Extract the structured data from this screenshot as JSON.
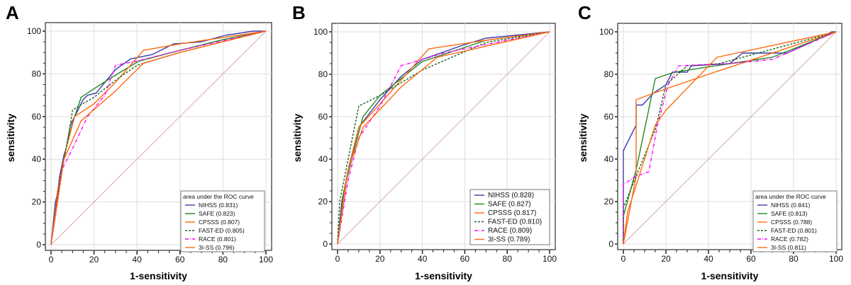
{
  "chart_data": [
    {
      "panel_label": "A",
      "type": "line",
      "xlabel": "1-sensitivity",
      "ylabel": "sensitivity",
      "xlim": [
        0,
        100
      ],
      "ylim": [
        0,
        100
      ],
      "ticks": [
        "0",
        "20",
        "40",
        "60",
        "80",
        "100"
      ],
      "grid": true,
      "legend_position": "bottom-right",
      "legend_title": "area under the ROC curve",
      "series": [
        {
          "name": "NIHSS (0.831)",
          "color": "#3b3bab",
          "style": "solid",
          "points": [
            [
              0,
              0
            ],
            [
              1,
              10
            ],
            [
              2,
              20
            ],
            [
              3,
              24
            ],
            [
              4,
              32
            ],
            [
              6,
              42
            ],
            [
              7,
              45
            ],
            [
              9,
              56
            ],
            [
              10,
              58
            ],
            [
              12,
              62
            ],
            [
              15,
              68
            ],
            [
              17,
              70
            ],
            [
              21,
              71
            ],
            [
              25,
              76
            ],
            [
              30,
              82
            ],
            [
              37,
              87
            ],
            [
              47,
              89
            ],
            [
              57,
              94
            ],
            [
              70,
              95
            ],
            [
              81,
              98
            ],
            [
              94,
              100
            ],
            [
              100,
              100
            ]
          ]
        },
        {
          "name": "SAFE (0.823)",
          "color": "#1f8a1f",
          "style": "solid",
          "points": [
            [
              0,
              0
            ],
            [
              2,
              15
            ],
            [
              4,
              30
            ],
            [
              7,
              45
            ],
            [
              10,
              57
            ],
            [
              14,
              69
            ],
            [
              23,
              75
            ],
            [
              31,
              80
            ],
            [
              41,
              86
            ],
            [
              60,
              91
            ],
            [
              80,
              96
            ],
            [
              100,
              100
            ]
          ]
        },
        {
          "name": "CPSSS (0.807)",
          "color": "#ff6a10",
          "style": "solid",
          "points": [
            [
              0,
              0
            ],
            [
              3,
              25
            ],
            [
              7,
              45
            ],
            [
              11,
              60
            ],
            [
              20,
              66
            ],
            [
              30,
              76
            ],
            [
              43,
              91
            ],
            [
              60,
              94
            ],
            [
              100,
              100
            ]
          ]
        },
        {
          "name": "FAST-ED (0.805)",
          "color": "#1a661a",
          "style": "dash",
          "points": [
            [
              0,
              0
            ],
            [
              4,
              30
            ],
            [
              8,
              50
            ],
            [
              10,
              63
            ],
            [
              13,
              65
            ],
            [
              20,
              69
            ],
            [
              30,
              77
            ],
            [
              40,
              84
            ],
            [
              60,
              90
            ],
            [
              100,
              100
            ]
          ]
        },
        {
          "name": "RACE (0.801)",
          "color": "#ff00ff",
          "style": "dashdot",
          "points": [
            [
              0,
              0
            ],
            [
              5,
              35
            ],
            [
              10,
              45
            ],
            [
              17,
              60
            ],
            [
              25,
              70
            ],
            [
              30,
              84
            ],
            [
              40,
              86
            ],
            [
              60,
              91
            ],
            [
              100,
              100
            ]
          ]
        },
        {
          "name": "3I-SS (0.796)",
          "color": "#ff6a10",
          "style": "solid",
          "points": [
            [
              0,
              0
            ],
            [
              6,
              40
            ],
            [
              14,
              58
            ],
            [
              30,
              72
            ],
            [
              43,
              85
            ],
            [
              60,
              90
            ],
            [
              100,
              100
            ]
          ]
        }
      ]
    },
    {
      "panel_label": "B",
      "type": "line",
      "xlabel": "1-sensitivity",
      "ylabel": "sensitivity",
      "xlim": [
        0,
        100
      ],
      "ylim": [
        0,
        100
      ],
      "ticks": [
        "0",
        "20",
        "40",
        "60",
        "80",
        "100"
      ],
      "grid": true,
      "legend_position": "bottom-right",
      "legend_title": "",
      "series": [
        {
          "name": "NIHSS (0.828)",
          "color": "#3b3bab",
          "style": "solid",
          "points": [
            [
              0,
              0
            ],
            [
              2,
              20
            ],
            [
              5,
              35
            ],
            [
              10,
              55
            ],
            [
              20,
              68
            ],
            [
              30,
              79
            ],
            [
              40,
              87
            ],
            [
              60,
              94
            ],
            [
              70,
              97
            ],
            [
              100,
              100
            ]
          ]
        },
        {
          "name": "SAFE (0.827)",
          "color": "#1f8a1f",
          "style": "solid",
          "points": [
            [
              0,
              0
            ],
            [
              3,
              25
            ],
            [
              8,
              45
            ],
            [
              12,
              60
            ],
            [
              20,
              70
            ],
            [
              40,
              86
            ],
            [
              70,
              96
            ],
            [
              100,
              100
            ]
          ]
        },
        {
          "name": "CPSSS (0.817)",
          "color": "#ff6a10",
          "style": "solid",
          "points": [
            [
              0,
              0
            ],
            [
              4,
              30
            ],
            [
              10,
              55
            ],
            [
              20,
              66
            ],
            [
              43,
              92
            ],
            [
              70,
              96
            ],
            [
              100,
              100
            ]
          ]
        },
        {
          "name": "FAST-ED (0.810)",
          "color": "#1a661a",
          "style": "dash",
          "points": [
            [
              0,
              0
            ],
            [
              1,
              20
            ],
            [
              5,
              40
            ],
            [
              10,
              65
            ],
            [
              20,
              70
            ],
            [
              40,
              82
            ],
            [
              70,
              95
            ],
            [
              100,
              100
            ]
          ]
        },
        {
          "name": "RACE (0.809)",
          "color": "#ff00ff",
          "style": "dashdot",
          "points": [
            [
              0,
              0
            ],
            [
              5,
              30
            ],
            [
              10,
              50
            ],
            [
              20,
              65
            ],
            [
              30,
              84
            ],
            [
              50,
              90
            ],
            [
              100,
              100
            ]
          ]
        },
        {
          "name": "3I-SS (0.789)",
          "color": "#ff6a10",
          "style": "solid",
          "points": [
            [
              0,
              0
            ],
            [
              5,
              35
            ],
            [
              12,
              55
            ],
            [
              30,
              74
            ],
            [
              47,
              88
            ],
            [
              100,
              100
            ]
          ]
        }
      ]
    },
    {
      "panel_label": "C",
      "type": "line",
      "xlabel": "1-sensitivity",
      "ylabel": "sensitivity",
      "xlim": [
        0,
        100
      ],
      "ylim": [
        0,
        100
      ],
      "ticks": [
        "0",
        "20",
        "40",
        "60",
        "80",
        "100"
      ],
      "grid": true,
      "legend_position": "bottom-right",
      "legend_title": "area under the ROC curve",
      "series": [
        {
          "name": "NIHSS (0.841)",
          "color": "#3b3bab",
          "style": "solid",
          "points": [
            [
              0,
              0
            ],
            [
              0,
              44
            ],
            [
              6,
              56
            ],
            [
              6,
              65.5
            ],
            [
              9,
              65.5
            ],
            [
              14,
              71
            ],
            [
              20,
              75
            ],
            [
              23,
              81
            ],
            [
              30,
              81
            ],
            [
              32,
              84
            ],
            [
              50,
              85
            ],
            [
              56,
              90
            ],
            [
              77,
              90
            ],
            [
              88,
              95
            ],
            [
              98,
              100
            ],
            [
              100,
              100
            ]
          ]
        },
        {
          "name": "SAFE (0.813)",
          "color": "#1f8a1f",
          "style": "solid",
          "points": [
            [
              0,
              0
            ],
            [
              0,
              13
            ],
            [
              6,
              35
            ],
            [
              15,
              78
            ],
            [
              24,
              81
            ],
            [
              50,
              85
            ],
            [
              70,
              88
            ],
            [
              100,
              100
            ]
          ]
        },
        {
          "name": "CPSSS (0.788)",
          "color": "#ff6a10",
          "style": "solid",
          "points": [
            [
              0,
              0
            ],
            [
              6,
              32
            ],
            [
              6,
              68
            ],
            [
              14,
              71
            ],
            [
              40,
              80
            ],
            [
              100,
              100
            ]
          ]
        },
        {
          "name": "FAST-ED (0.801)",
          "color": "#1a661a",
          "style": "dash",
          "points": [
            [
              0,
              0
            ],
            [
              0,
              17
            ],
            [
              6,
              32
            ],
            [
              15,
              54
            ],
            [
              20,
              75
            ],
            [
              30,
              84
            ],
            [
              45,
              85
            ],
            [
              100,
              100
            ]
          ]
        },
        {
          "name": "RACE (0.782)",
          "color": "#ff00ff",
          "style": "dashdot",
          "points": [
            [
              0,
              0
            ],
            [
              0,
              28
            ],
            [
              6,
              32
            ],
            [
              12,
              34
            ],
            [
              16,
              56
            ],
            [
              21,
              75
            ],
            [
              26,
              84
            ],
            [
              50,
              85
            ],
            [
              70,
              87
            ],
            [
              100,
              100
            ]
          ]
        },
        {
          "name": "3I-SS (0.811)",
          "color": "#ff6a10",
          "style": "solid",
          "points": [
            [
              0,
              0
            ],
            [
              2,
              15
            ],
            [
              15,
              56
            ],
            [
              20,
              63
            ],
            [
              44,
              88
            ],
            [
              100,
              100
            ]
          ]
        }
      ]
    }
  ]
}
